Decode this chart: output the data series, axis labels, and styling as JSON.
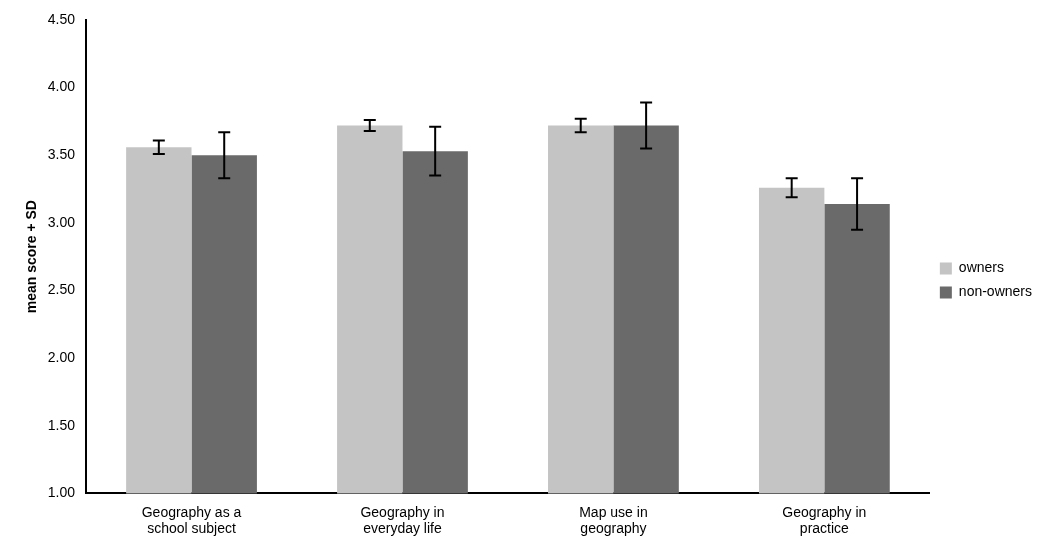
{
  "chart_data": {
    "type": "bar",
    "ylabel": "mean score + SD",
    "categories": [
      "Geography as a school subject",
      "Geography in everyday life",
      "Map use in geography",
      "Geography in practice"
    ],
    "series": [
      {
        "name": "owners",
        "color": "#c4c4c4",
        "values": [
          3.56,
          3.72,
          3.72,
          3.26
        ],
        "errors": [
          0.05,
          0.04,
          0.05,
          0.07
        ]
      },
      {
        "name": "non-owners",
        "color": "#6a6a6a",
        "values": [
          3.5,
          3.53,
          3.72,
          3.14
        ],
        "errors": [
          0.17,
          0.18,
          0.17,
          0.19
        ]
      }
    ],
    "ylim": [
      1,
      4.5
    ],
    "yticks": [
      {
        "value": 1,
        "label": "1.00"
      },
      {
        "value": 1.5,
        "label": "1.50"
      },
      {
        "value": 2,
        "label": "2.00"
      },
      {
        "value": 2.5,
        "label": "2.50"
      },
      {
        "value": 3,
        "label": "3.00"
      },
      {
        "value": 3.5,
        "label": "3.50"
      },
      {
        "value": 4,
        "label": "4.00"
      },
      {
        "value": 4.5,
        "label": "4.50"
      }
    ],
    "grid": false,
    "legend": "right"
  }
}
